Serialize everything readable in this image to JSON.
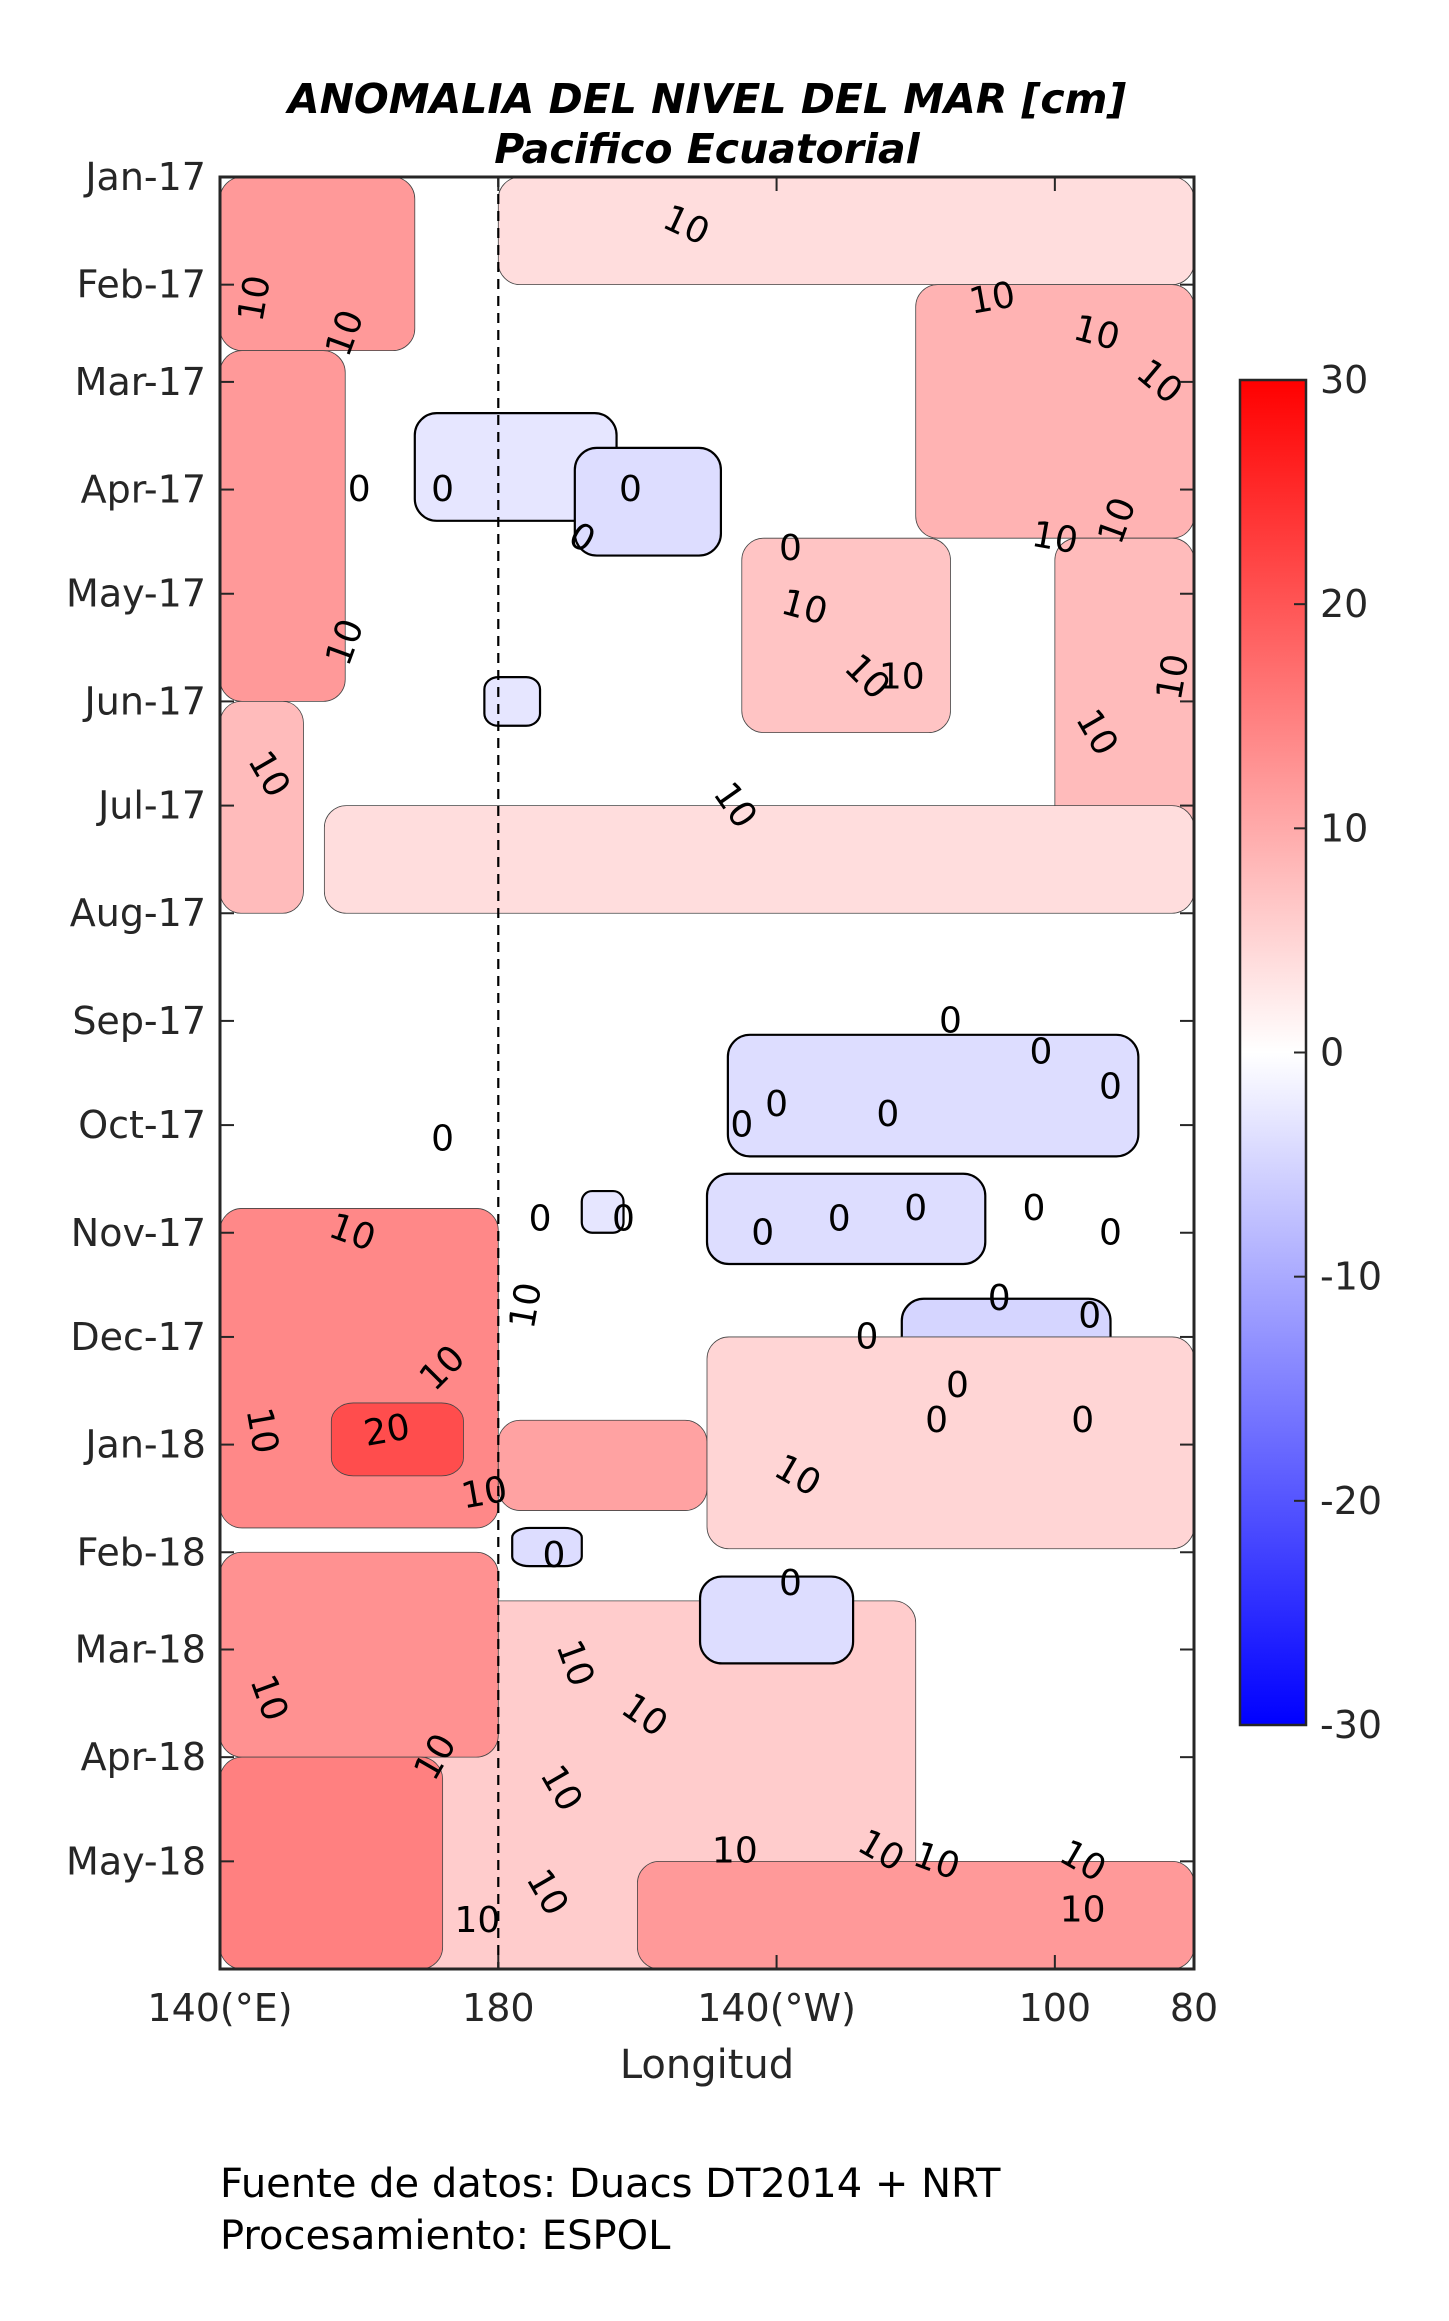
{
  "title": {
    "line1": "ANOMALIA DEL NIVEL DEL MAR [cm]",
    "line2": "Pacifico Ecuatorial"
  },
  "footer": {
    "source": "Fuente de datos: Duacs DT2014 + NRT",
    "processing": "Procesamiento: ESPOL"
  },
  "chart_data": {
    "type": "heatmap",
    "variable": "sea level anomaly (cm)",
    "x_axis": {
      "label": "Longitud",
      "range_deg_east": [
        140,
        280
      ],
      "ticks": [
        {
          "value": 140,
          "label": "140(°E)"
        },
        {
          "value": 180,
          "label": "180"
        },
        {
          "value": 220,
          "label": "140(°W)"
        },
        {
          "value": 260,
          "label": "100"
        },
        {
          "value": 280,
          "label": "80"
        }
      ],
      "reference_line": {
        "value": 180,
        "style": "dashed"
      }
    },
    "y_axis": {
      "reversed": true,
      "range": [
        "2017-01-01",
        "2018-06-01"
      ],
      "ticks": [
        {
          "value": "2017-01-01",
          "label": "Jan-17"
        },
        {
          "value": "2017-02-01",
          "label": "Feb-17"
        },
        {
          "value": "2017-03-01",
          "label": "Mar-17"
        },
        {
          "value": "2017-04-01",
          "label": "Apr-17"
        },
        {
          "value": "2017-05-01",
          "label": "May-17"
        },
        {
          "value": "2017-06-01",
          "label": "Jun-17"
        },
        {
          "value": "2017-07-01",
          "label": "Jul-17"
        },
        {
          "value": "2017-08-01",
          "label": "Aug-17"
        },
        {
          "value": "2017-09-01",
          "label": "Sep-17"
        },
        {
          "value": "2017-10-01",
          "label": "Oct-17"
        },
        {
          "value": "2017-11-01",
          "label": "Nov-17"
        },
        {
          "value": "2017-12-01",
          "label": "Dec-17"
        },
        {
          "value": "2018-01-01",
          "label": "Jan-18"
        },
        {
          "value": "2018-02-01",
          "label": "Feb-18"
        },
        {
          "value": "2018-03-01",
          "label": "Mar-18"
        },
        {
          "value": "2018-04-01",
          "label": "Apr-18"
        },
        {
          "value": "2018-05-01",
          "label": "May-18"
        }
      ]
    },
    "colorbar": {
      "range": [
        -30,
        30
      ],
      "ticks": [
        {
          "value": 30,
          "label": "30"
        },
        {
          "value": 20,
          "label": "20"
        },
        {
          "value": 10,
          "label": "10"
        },
        {
          "value": 0,
          "label": "0"
        },
        {
          "value": -10,
          "label": "-10"
        },
        {
          "value": -20,
          "label": "-20"
        },
        {
          "value": -30,
          "label": "-30"
        }
      ],
      "colors": {
        "low": "#0000ff",
        "mid": "#ffffff",
        "high": "#ff0000"
      },
      "filled_levels_cm": [
        2,
        5,
        10,
        15,
        20
      ]
    },
    "contour_levels": [
      0,
      10,
      20
    ],
    "regions": [
      {
        "lon": [
          140,
          168
        ],
        "date": [
          "2017-01-01",
          "2017-02-20"
        ],
        "value": 12
      },
      {
        "lon": [
          140,
          158
        ],
        "date": [
          "2017-02-20",
          "2017-06-01"
        ],
        "value": 12
      },
      {
        "lon": [
          140,
          152
        ],
        "date": [
          "2017-06-01",
          "2017-08-01"
        ],
        "value": 8
      },
      {
        "lon": [
          180,
          280
        ],
        "date": [
          "2017-01-01",
          "2017-02-01"
        ],
        "value": 4
      },
      {
        "lon": [
          240,
          280
        ],
        "date": [
          "2017-02-01",
          "2017-04-15"
        ],
        "value": 9
      },
      {
        "lon": [
          260,
          280
        ],
        "date": [
          "2017-04-15",
          "2017-07-15"
        ],
        "value": 8
      },
      {
        "lon": [
          215,
          245
        ],
        "date": [
          "2017-04-15",
          "2017-06-10"
        ],
        "value": 7
      },
      {
        "lon": [
          155,
          280
        ],
        "date": [
          "2017-07-01",
          "2017-08-01"
        ],
        "value": 4
      },
      {
        "lon": [
          168,
          197
        ],
        "date": [
          "2017-03-10",
          "2017-04-10"
        ],
        "value": -3
      },
      {
        "lon": [
          191,
          212
        ],
        "date": [
          "2017-03-20",
          "2017-04-20"
        ],
        "value": -4
      },
      {
        "lon": [
          178,
          186
        ],
        "date": [
          "2017-05-25",
          "2017-06-08"
        ],
        "value": -3
      },
      {
        "lon": [
          213,
          272
        ],
        "date": [
          "2017-09-05",
          "2017-10-10"
        ],
        "value": -4
      },
      {
        "lon": [
          210,
          250
        ],
        "date": [
          "2017-10-15",
          "2017-11-10"
        ],
        "value": -4
      },
      {
        "lon": [
          238,
          268
        ],
        "date": [
          "2017-11-20",
          "2018-01-10"
        ],
        "value": -5
      },
      {
        "lon": [
          192,
          198
        ],
        "date": [
          "2017-10-20",
          "2017-11-01"
        ],
        "value": -3
      },
      {
        "lon": [
          140,
          180
        ],
        "date": [
          "2017-10-25",
          "2018-01-25"
        ],
        "value": 14
      },
      {
        "lon": [
          156,
          175
        ],
        "date": [
          "2017-12-20",
          "2018-01-10"
        ],
        "value": 21
      },
      {
        "lon": [
          180,
          210
        ],
        "date": [
          "2017-12-25",
          "2018-01-20"
        ],
        "value": 11
      },
      {
        "lon": [
          210,
          280
        ],
        "date": [
          "2017-12-01",
          "2018-01-31"
        ],
        "value": 5
      },
      {
        "lon": [
          160,
          240
        ],
        "date": [
          "2018-02-15",
          "2018-06-01"
        ],
        "value": 6
      },
      {
        "lon": [
          140,
          180
        ],
        "date": [
          "2018-02-01",
          "2018-04-01"
        ],
        "value": 13
      },
      {
        "lon": [
          140,
          172
        ],
        "date": [
          "2018-04-01",
          "2018-06-01"
        ],
        "value": 15
      },
      {
        "lon": [
          182,
          192
        ],
        "date": [
          "2018-01-25",
          "2018-02-05"
        ],
        "value": -4
      },
      {
        "lon": [
          209,
          231
        ],
        "date": [
          "2018-02-08",
          "2018-03-05"
        ],
        "value": -4
      },
      {
        "lon": [
          200,
          280
        ],
        "date": [
          "2018-05-01",
          "2018-06-01"
        ],
        "value": 12
      }
    ],
    "contour_labels": [
      {
        "text": "10",
        "lon": 207,
        "date": "2017-01-15",
        "angle": 25
      },
      {
        "text": "10",
        "lon": 145,
        "date": "2017-02-05",
        "angle": -80
      },
      {
        "text": "10",
        "lon": 158,
        "date": "2017-02-15",
        "angle": -70
      },
      {
        "text": "10",
        "lon": 251,
        "date": "2017-02-05",
        "angle": -10
      },
      {
        "text": "10",
        "lon": 266,
        "date": "2017-02-15",
        "angle": 15
      },
      {
        "text": "10",
        "lon": 275,
        "date": "2017-03-01",
        "angle": 40
      },
      {
        "text": "0",
        "lon": 160,
        "date": "2017-04-01",
        "angle": 0
      },
      {
        "text": "0",
        "lon": 172,
        "date": "2017-04-01",
        "angle": 0
      },
      {
        "text": "0",
        "lon": 199,
        "date": "2017-04-01",
        "angle": 0
      },
      {
        "text": "0",
        "lon": 192,
        "date": "2017-04-15",
        "angle": 30
      },
      {
        "text": "0",
        "lon": 222,
        "date": "2017-04-18",
        "angle": 0
      },
      {
        "text": "10",
        "lon": 260,
        "date": "2017-04-15",
        "angle": 10
      },
      {
        "text": "10",
        "lon": 269,
        "date": "2017-04-10",
        "angle": -70
      },
      {
        "text": "10",
        "lon": 224,
        "date": "2017-05-05",
        "angle": 15
      },
      {
        "text": "10",
        "lon": 158,
        "date": "2017-05-15",
        "angle": -70
      },
      {
        "text": "10",
        "lon": 233,
        "date": "2017-05-25",
        "angle": 45
      },
      {
        "text": "10",
        "lon": 238,
        "date": "2017-05-25",
        "angle": 0
      },
      {
        "text": "10",
        "lon": 266,
        "date": "2017-06-10",
        "angle": 60
      },
      {
        "text": "10",
        "lon": 277,
        "date": "2017-05-25",
        "angle": -80
      },
      {
        "text": "10",
        "lon": 147,
        "date": "2017-06-22",
        "angle": 60
      },
      {
        "text": "10",
        "lon": 214,
        "date": "2017-07-01",
        "angle": 55
      },
      {
        "text": "0",
        "lon": 245,
        "date": "2017-09-01",
        "angle": 0
      },
      {
        "text": "0",
        "lon": 258,
        "date": "2017-09-10",
        "angle": 0
      },
      {
        "text": "0",
        "lon": 268,
        "date": "2017-09-20",
        "angle": 0
      },
      {
        "text": "0",
        "lon": 220,
        "date": "2017-09-25",
        "angle": 0
      },
      {
        "text": "0",
        "lon": 215,
        "date": "2017-10-01",
        "angle": 0
      },
      {
        "text": "0",
        "lon": 236,
        "date": "2017-09-28",
        "angle": 0
      },
      {
        "text": "0",
        "lon": 172,
        "date": "2017-10-05",
        "angle": 0
      },
      {
        "text": "0",
        "lon": 186,
        "date": "2017-10-28",
        "angle": 0
      },
      {
        "text": "0",
        "lon": 198,
        "date": "2017-10-28",
        "angle": 0
      },
      {
        "text": "0",
        "lon": 218,
        "date": "2017-11-01",
        "angle": 0
      },
      {
        "text": "0",
        "lon": 229,
        "date": "2017-10-28",
        "angle": 0
      },
      {
        "text": "0",
        "lon": 240,
        "date": "2017-10-25",
        "angle": 0
      },
      {
        "text": "0",
        "lon": 257,
        "date": "2017-10-25",
        "angle": 0
      },
      {
        "text": "0",
        "lon": 268,
        "date": "2017-11-01",
        "angle": 0
      },
      {
        "text": "10",
        "lon": 159,
        "date": "2017-11-01",
        "angle": 20
      },
      {
        "text": "10",
        "lon": 184,
        "date": "2017-11-22",
        "angle": -80
      },
      {
        "text": "0",
        "lon": 252,
        "date": "2017-11-20",
        "angle": 0
      },
      {
        "text": "0",
        "lon": 265,
        "date": "2017-11-25",
        "angle": 0
      },
      {
        "text": "0",
        "lon": 233,
        "date": "2017-12-01",
        "angle": 0
      },
      {
        "text": "10",
        "lon": 172,
        "date": "2017-12-10",
        "angle": -45
      },
      {
        "text": "0",
        "lon": 246,
        "date": "2017-12-15",
        "angle": 0
      },
      {
        "text": "0",
        "lon": 264,
        "date": "2017-12-25",
        "angle": 0
      },
      {
        "text": "0",
        "lon": 243,
        "date": "2017-12-25",
        "angle": 0
      },
      {
        "text": "20",
        "lon": 164,
        "date": "2017-12-28",
        "angle": -10
      },
      {
        "text": "10",
        "lon": 146,
        "date": "2017-12-28",
        "angle": 80
      },
      {
        "text": "10",
        "lon": 178,
        "date": "2018-01-15",
        "angle": -10
      },
      {
        "text": "10",
        "lon": 223,
        "date": "2018-01-10",
        "angle": 30
      },
      {
        "text": "0",
        "lon": 188,
        "date": "2018-02-02",
        "angle": 0
      },
      {
        "text": "0",
        "lon": 222,
        "date": "2018-02-10",
        "angle": 0
      },
      {
        "text": "10",
        "lon": 147,
        "date": "2018-03-15",
        "angle": 70
      },
      {
        "text": "10",
        "lon": 191,
        "date": "2018-03-05",
        "angle": 70
      },
      {
        "text": "10",
        "lon": 201,
        "date": "2018-03-20",
        "angle": 35
      },
      {
        "text": "10",
        "lon": 171,
        "date": "2018-04-01",
        "angle": -60
      },
      {
        "text": "10",
        "lon": 189,
        "date": "2018-04-10",
        "angle": 60
      },
      {
        "text": "10",
        "lon": 235,
        "date": "2018-04-28",
        "angle": 30
      },
      {
        "text": "10",
        "lon": 243,
        "date": "2018-05-01",
        "angle": 20
      },
      {
        "text": "10",
        "lon": 214,
        "date": "2018-04-28",
        "angle": 0
      },
      {
        "text": "10",
        "lon": 264,
        "date": "2018-05-01",
        "angle": 30
      },
      {
        "text": "10",
        "lon": 187,
        "date": "2018-05-10",
        "angle": 60
      },
      {
        "text": "10",
        "lon": 264,
        "date": "2018-05-15",
        "angle": 0
      },
      {
        "text": "10",
        "lon": 177,
        "date": "2018-05-18",
        "angle": 0
      }
    ]
  }
}
